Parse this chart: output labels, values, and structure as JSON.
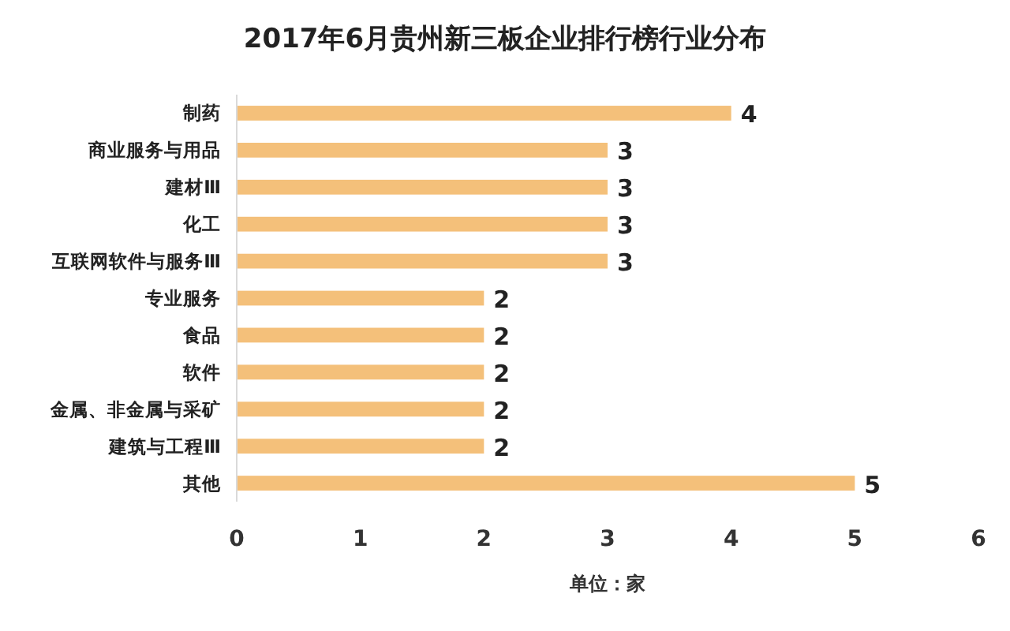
{
  "chart_data": {
    "type": "bar",
    "orientation": "horizontal",
    "title": "2017年6月贵州新三板企业排行榜行业分布",
    "xlabel": "单位：家",
    "categories": [
      "制药",
      "商业服务与用品",
      "建材Ⅲ",
      "化工",
      "互联网软件与服务Ⅲ",
      "专业服务",
      "食品",
      "软件",
      "金属、非金属与采矿",
      "建筑与工程Ⅲ",
      "其他"
    ],
    "values": [
      4,
      3,
      3,
      3,
      3,
      2,
      2,
      2,
      2,
      2,
      5
    ],
    "color": "#f4c07a",
    "xlim": [
      0,
      6
    ],
    "xticks": [
      0,
      1,
      2,
      3,
      4,
      5,
      6
    ],
    "data_labels": true
  }
}
